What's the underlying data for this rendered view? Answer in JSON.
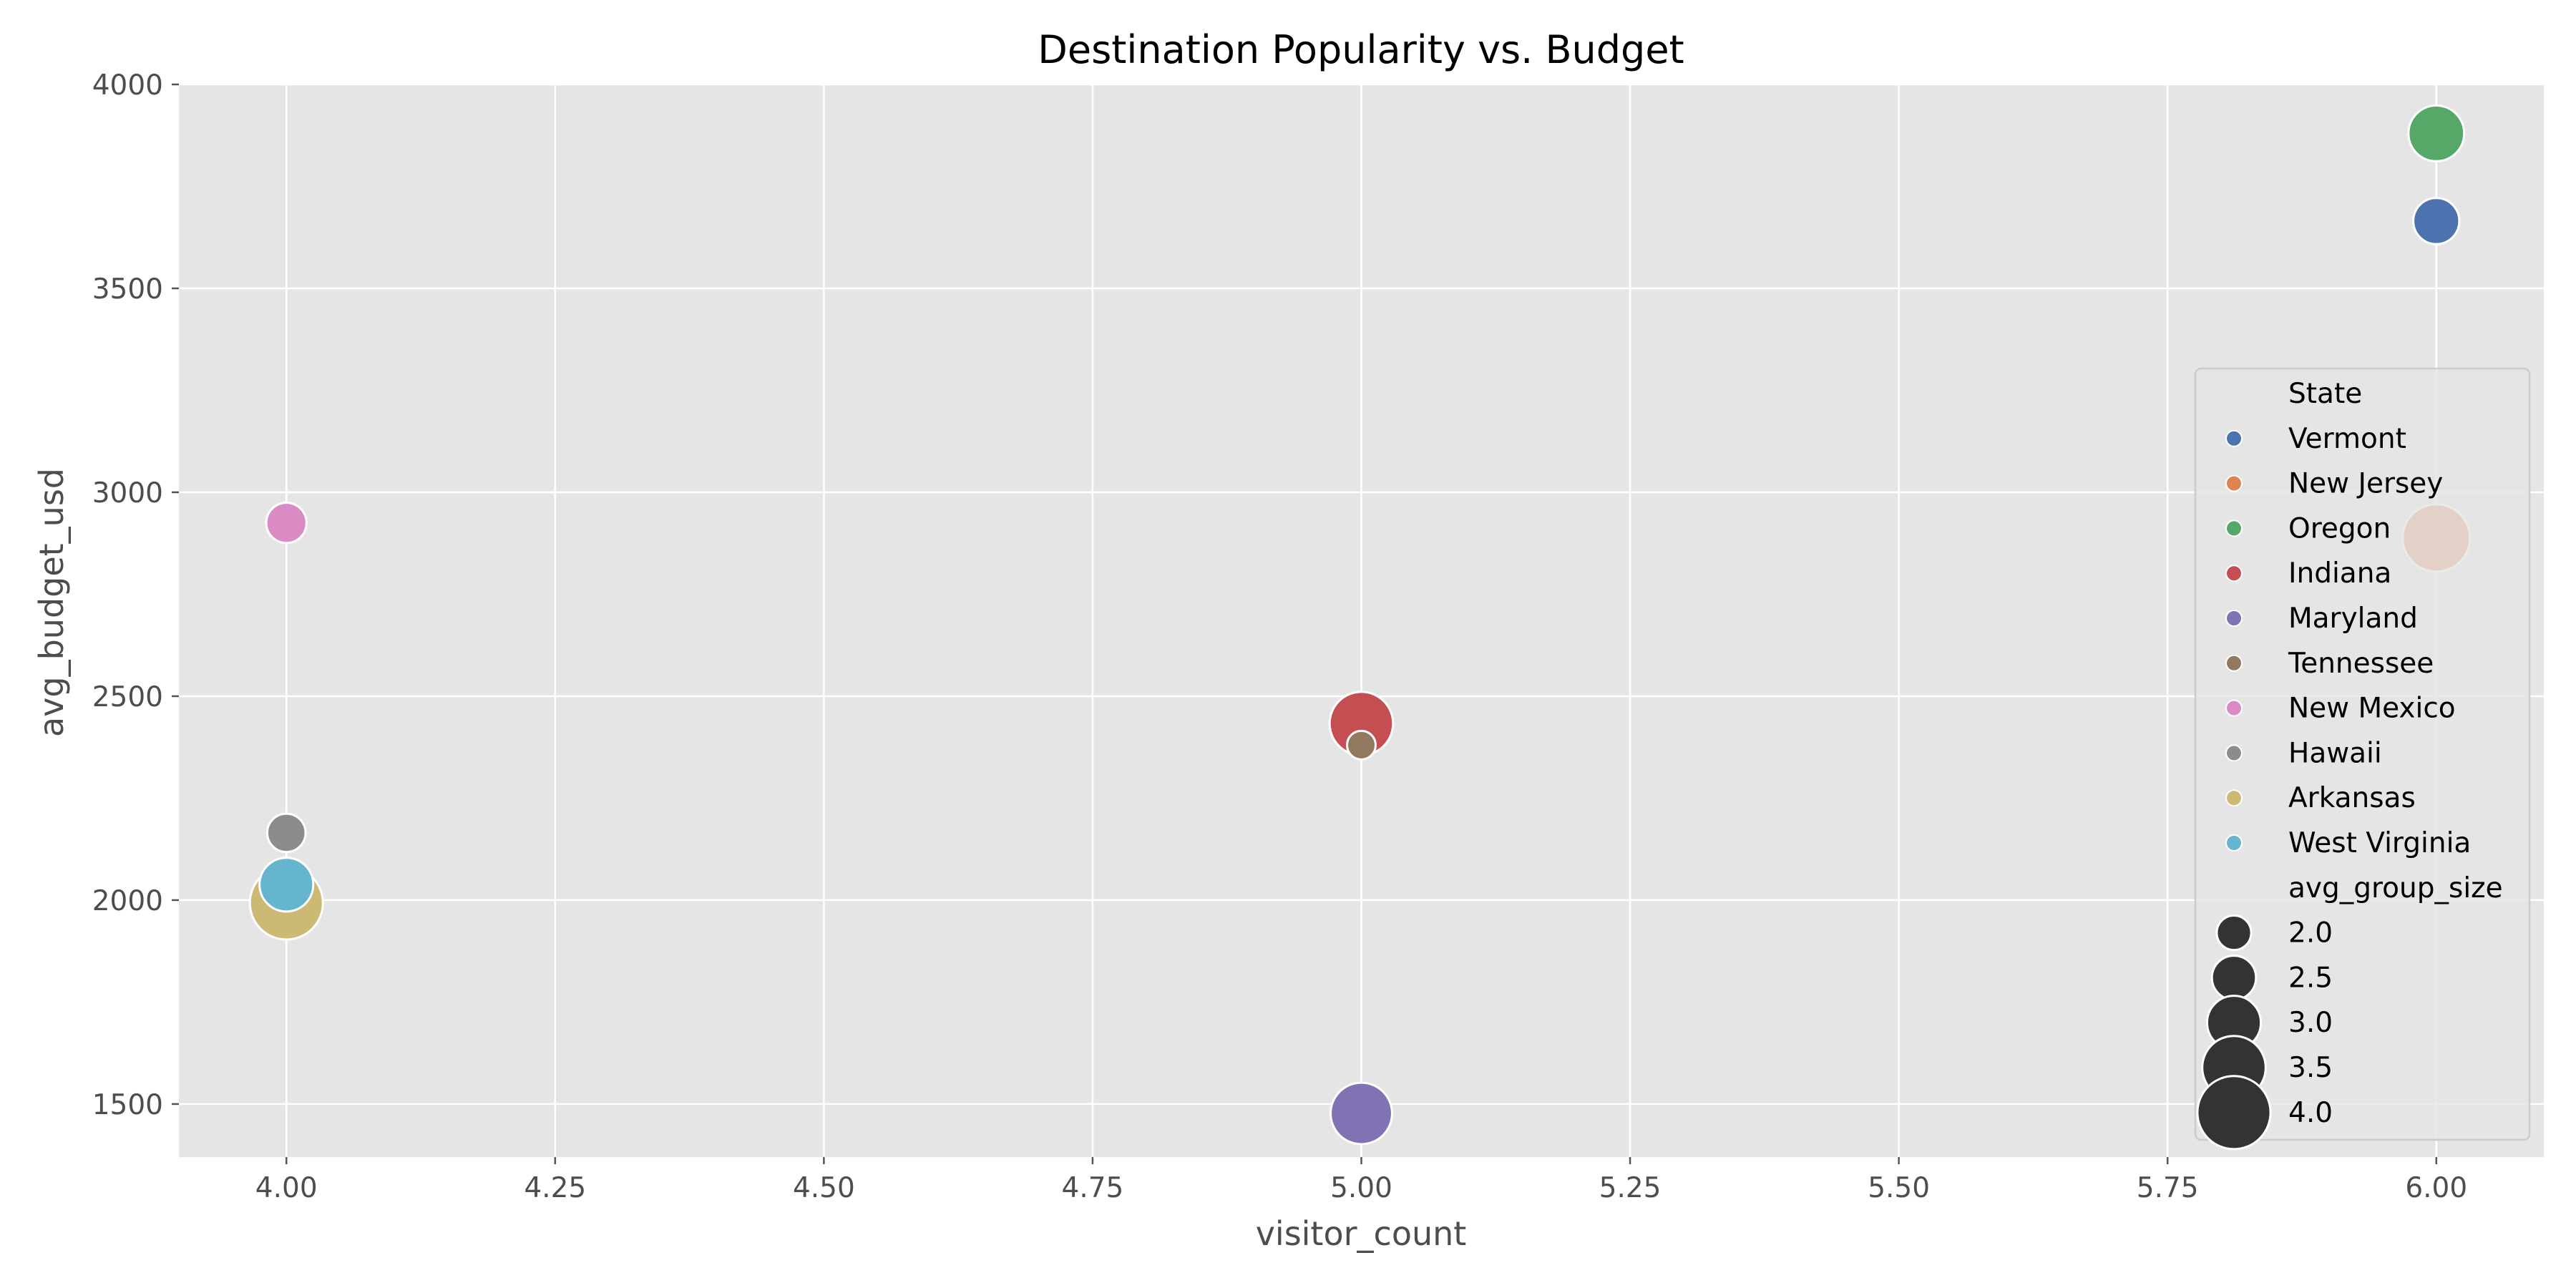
{
  "chart_data": {
    "type": "scatter",
    "title": "Destination Popularity vs. Budget",
    "xlabel": "visitor_count",
    "ylabel": "avg_budget_usd",
    "xlim": [
      3.9,
      6.1
    ],
    "ylim": [
      1370,
      4000
    ],
    "xticks": [
      "4.00",
      "4.25",
      "4.50",
      "4.75",
      "5.00",
      "5.25",
      "5.50",
      "5.75",
      "6.00"
    ],
    "yticks": [
      "1500",
      "2000",
      "2500",
      "3000",
      "3500",
      "4000"
    ],
    "grid": true,
    "legend_position": "right",
    "hue_title": "State",
    "size_title": "avg_group_size",
    "size_legend": [
      "2.0",
      "2.5",
      "3.0",
      "3.5",
      "4.0"
    ],
    "series": [
      {
        "name": "Vermont",
        "color": "#4c72b0",
        "points": [
          {
            "x": 6,
            "y": 3665,
            "size": 2.6
          }
        ]
      },
      {
        "name": "New Jersey",
        "color": "#dd8452",
        "points": [
          {
            "x": 6,
            "y": 2888,
            "size": 3.7
          }
        ]
      },
      {
        "name": "Oregon",
        "color": "#55a868",
        "points": [
          {
            "x": 6,
            "y": 3880,
            "size": 3.1
          }
        ]
      },
      {
        "name": "Indiana",
        "color": "#c44e52",
        "points": [
          {
            "x": 5,
            "y": 2433,
            "size": 3.5
          }
        ]
      },
      {
        "name": "Maryland",
        "color": "#8172b3",
        "points": [
          {
            "x": 5,
            "y": 1477,
            "size": 3.4
          }
        ]
      },
      {
        "name": "Tennessee",
        "color": "#937860",
        "points": [
          {
            "x": 5,
            "y": 2380,
            "size": 1.7
          }
        ]
      },
      {
        "name": "New Mexico",
        "color": "#da8bc3",
        "points": [
          {
            "x": 4,
            "y": 2925,
            "size": 2.3
          }
        ]
      },
      {
        "name": "Hawaii",
        "color": "#8c8c8c",
        "points": [
          {
            "x": 4,
            "y": 2165,
            "size": 2.2
          }
        ]
      },
      {
        "name": "Arkansas",
        "color": "#ccb974",
        "points": [
          {
            "x": 4,
            "y": 1993,
            "size": 4.0
          }
        ]
      },
      {
        "name": "West Virginia",
        "color": "#64b5cd",
        "points": [
          {
            "x": 4,
            "y": 2038,
            "size": 3.0
          }
        ]
      }
    ]
  }
}
